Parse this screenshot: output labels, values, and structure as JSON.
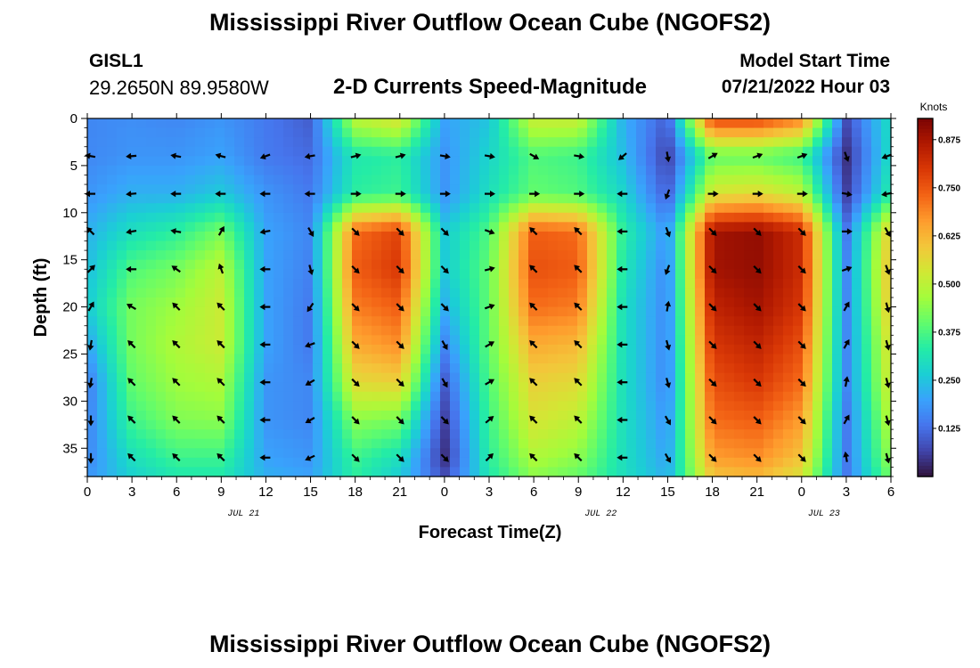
{
  "header": {
    "title": "Mississippi River Outflow Ocean Cube (NGOFS2)",
    "station": "GISL1",
    "coords": "29.2650N  89.9580W",
    "subtitle": "2-D Currents Speed-Magnitude",
    "model_start_label": "Model Start Time",
    "model_start_value": "07/21/2022 Hour 03"
  },
  "footer": {
    "title": "Mississippi River Outflow Ocean Cube (NGOFS2)"
  },
  "chart_data": {
    "type": "heatmap",
    "xlabel": "Forecast Time(Z)",
    "ylabel": "Depth (ft)",
    "x_ticks": [
      "0",
      "3",
      "6",
      "9",
      "12",
      "15",
      "18",
      "21",
      "0",
      "3",
      "6",
      "9",
      "12",
      "15",
      "18",
      "21",
      "0",
      "3",
      "6"
    ],
    "date_labels": [
      {
        "label": "JUL 21",
        "tick_index": 3.5
      },
      {
        "label": "JUL 22",
        "tick_index": 11.5
      },
      {
        "label": "JUL 23",
        "tick_index": 16.5
      }
    ],
    "y_ticks": [
      0,
      5,
      10,
      15,
      20,
      25,
      30,
      35
    ],
    "ylim": [
      0,
      38
    ],
    "y_inverted": true,
    "colorbar": {
      "unit": "Knots",
      "range": [
        0.0,
        0.93
      ],
      "tick_values": [
        0.125,
        0.25,
        0.375,
        0.5,
        0.625,
        0.75,
        0.875
      ],
      "tick_labels": [
        "0.125",
        "0.250",
        "0.375",
        "0.500",
        "0.625",
        "0.750",
        "0.875"
      ],
      "colormap": [
        "#30123b",
        "#4145ab",
        "#4675ed",
        "#39a2fc",
        "#1bcfd4",
        "#24eca6",
        "#61fc6c",
        "#a4fc3b",
        "#d1e834",
        "#f3c63a",
        "#fe9b2d",
        "#f36315",
        "#d93806",
        "#b11901",
        "#7a0403"
      ]
    },
    "speed_depths": [
      0,
      4,
      8,
      12,
      16,
      20,
      24,
      28,
      32,
      36,
      38
    ],
    "speed_columns": [
      {
        "hour": 0,
        "values": [
          0.16,
          0.16,
          0.18,
          0.22,
          0.24,
          0.26,
          0.2,
          0.14,
          0.15,
          0.16,
          0.18
        ]
      },
      {
        "hour": 3,
        "values": [
          0.17,
          0.18,
          0.22,
          0.3,
          0.38,
          0.42,
          0.42,
          0.4,
          0.36,
          0.3,
          0.27
        ]
      },
      {
        "hour": 6,
        "values": [
          0.16,
          0.18,
          0.22,
          0.34,
          0.42,
          0.46,
          0.48,
          0.46,
          0.43,
          0.36,
          0.32
        ]
      },
      {
        "hour": 9,
        "values": [
          0.18,
          0.2,
          0.26,
          0.42,
          0.5,
          0.52,
          0.52,
          0.48,
          0.44,
          0.36,
          0.32
        ]
      },
      {
        "hour": 12,
        "values": [
          0.14,
          0.14,
          0.18,
          0.2,
          0.2,
          0.2,
          0.2,
          0.18,
          0.18,
          0.2,
          0.22
        ]
      },
      {
        "hour": 15,
        "values": [
          0.1,
          0.12,
          0.14,
          0.16,
          0.15,
          0.14,
          0.14,
          0.16,
          0.16,
          0.18,
          0.2
        ]
      },
      {
        "hour": 18,
        "values": [
          0.5,
          0.32,
          0.34,
          0.72,
          0.74,
          0.7,
          0.64,
          0.56,
          0.44,
          0.36,
          0.34
        ]
      },
      {
        "hour": 21,
        "values": [
          0.55,
          0.34,
          0.36,
          0.78,
          0.8,
          0.74,
          0.68,
          0.58,
          0.42,
          0.3,
          0.26
        ]
      },
      {
        "hour": 24,
        "values": [
          0.2,
          0.18,
          0.18,
          0.26,
          0.26,
          0.22,
          0.16,
          0.1,
          0.06,
          0.04,
          0.08
        ]
      },
      {
        "hour": 27,
        "values": [
          0.25,
          0.28,
          0.3,
          0.38,
          0.4,
          0.4,
          0.4,
          0.38,
          0.36,
          0.34,
          0.32
        ]
      },
      {
        "hour": 30,
        "values": [
          0.52,
          0.38,
          0.4,
          0.74,
          0.76,
          0.72,
          0.64,
          0.58,
          0.54,
          0.48,
          0.44
        ]
      },
      {
        "hour": 33,
        "values": [
          0.52,
          0.36,
          0.38,
          0.72,
          0.74,
          0.7,
          0.62,
          0.56,
          0.5,
          0.44,
          0.4
        ]
      },
      {
        "hour": 36,
        "values": [
          0.22,
          0.24,
          0.28,
          0.34,
          0.32,
          0.3,
          0.3,
          0.3,
          0.3,
          0.3,
          0.3
        ]
      },
      {
        "hour": 39,
        "values": [
          0.1,
          0.06,
          0.1,
          0.18,
          0.16,
          0.16,
          0.16,
          0.16,
          0.18,
          0.2,
          0.22
        ]
      },
      {
        "hour": 42,
        "values": [
          0.78,
          0.4,
          0.54,
          0.88,
          0.88,
          0.84,
          0.8,
          0.76,
          0.72,
          0.66,
          0.6
        ]
      },
      {
        "hour": 45,
        "values": [
          0.78,
          0.4,
          0.56,
          0.9,
          0.9,
          0.88,
          0.84,
          0.8,
          0.74,
          0.68,
          0.62
        ]
      },
      {
        "hour": 48,
        "values": [
          0.7,
          0.36,
          0.5,
          0.82,
          0.82,
          0.8,
          0.76,
          0.72,
          0.66,
          0.6,
          0.54
        ]
      },
      {
        "hour": 51,
        "values": [
          0.08,
          0.04,
          0.06,
          0.14,
          0.16,
          0.16,
          0.16,
          0.16,
          0.14,
          0.14,
          0.14
        ]
      },
      {
        "hour": 54,
        "values": [
          0.3,
          0.3,
          0.34,
          0.6,
          0.62,
          0.6,
          0.56,
          0.54,
          0.5,
          0.46,
          0.42
        ]
      }
    ],
    "vector_depths": [
      4,
      8,
      12,
      16,
      20,
      24,
      28,
      32,
      36
    ],
    "vector_columns": [
      {
        "hour": 0,
        "dirs": [
          280,
          270,
          315,
          45,
          30,
          190,
          190,
          180,
          180
        ]
      },
      {
        "hour": 3,
        "dirs": [
          265,
          265,
          260,
          270,
          300,
          315,
          315,
          315,
          315
        ]
      },
      {
        "hour": 6,
        "dirs": [
          280,
          270,
          280,
          305,
          315,
          315,
          315,
          315,
          315
        ]
      },
      {
        "hour": 9,
        "dirs": [
          285,
          270,
          30,
          340,
          315,
          315,
          315,
          315,
          315
        ]
      },
      {
        "hour": 12,
        "dirs": [
          250,
          270,
          260,
          270,
          270,
          270,
          270,
          270,
          270
        ]
      },
      {
        "hour": 15,
        "dirs": [
          260,
          270,
          150,
          165,
          215,
          250,
          240,
          240,
          245
        ]
      },
      {
        "hour": 18,
        "dirs": [
          75,
          90,
          135,
          135,
          135,
          135,
          135,
          135,
          135
        ]
      },
      {
        "hour": 21,
        "dirs": [
          75,
          90,
          135,
          135,
          135,
          135,
          135,
          135,
          135
        ]
      },
      {
        "hour": 24,
        "dirs": [
          100,
          90,
          135,
          135,
          135,
          150,
          150,
          135,
          135
        ]
      },
      {
        "hour": 27,
        "dirs": [
          100,
          90,
          110,
          75,
          70,
          60,
          60,
          50,
          45
        ]
      },
      {
        "hour": 30,
        "dirs": [
          120,
          90,
          315,
          315,
          315,
          315,
          315,
          315,
          315
        ]
      },
      {
        "hour": 33,
        "dirs": [
          100,
          90,
          315,
          315,
          315,
          315,
          315,
          315,
          315
        ]
      },
      {
        "hour": 36,
        "dirs": [
          230,
          270,
          270,
          270,
          270,
          270,
          270,
          270,
          270
        ]
      },
      {
        "hour": 39,
        "dirs": [
          170,
          200,
          160,
          200,
          10,
          165,
          165,
          150,
          150
        ]
      },
      {
        "hour": 42,
        "dirs": [
          60,
          90,
          135,
          135,
          135,
          135,
          135,
          135,
          135
        ]
      },
      {
        "hour": 45,
        "dirs": [
          70,
          90,
          135,
          135,
          135,
          135,
          135,
          135,
          135
        ]
      },
      {
        "hour": 48,
        "dirs": [
          70,
          90,
          135,
          135,
          135,
          135,
          135,
          135,
          135
        ]
      },
      {
        "hour": 51,
        "dirs": [
          160,
          100,
          90,
          70,
          30,
          30,
          10,
          30,
          350
        ]
      },
      {
        "hour": 54,
        "dirs": [
          250,
          260,
          150,
          160,
          165,
          165,
          165,
          165,
          165
        ]
      }
    ]
  }
}
